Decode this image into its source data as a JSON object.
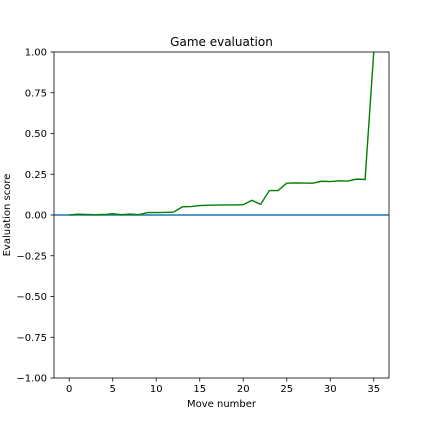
{
  "chart_data": {
    "type": "line",
    "title": "Game evaluation",
    "xlabel": "Move number",
    "ylabel": "Evaluation score",
    "xlim": [
      -1.75,
      36.75
    ],
    "ylim": [
      -1.0,
      1.0
    ],
    "xticks": [
      0,
      5,
      10,
      15,
      20,
      25,
      30,
      35
    ],
    "xtick_labels": [
      "0",
      "5",
      "10",
      "15",
      "20",
      "25",
      "30",
      "35"
    ],
    "yticks": [
      -1.0,
      -0.75,
      -0.5,
      -0.25,
      0.0,
      0.25,
      0.5,
      0.75,
      1.0
    ],
    "ytick_labels": [
      "−1.00",
      "−0.75",
      "−0.50",
      "−0.25",
      "0.00",
      "0.25",
      "0.50",
      "0.75",
      "1.00"
    ],
    "grid": false,
    "series": [
      {
        "color": "#008000",
        "x": [
          0,
          1,
          2,
          3,
          4,
          5,
          6,
          7,
          8,
          9,
          10,
          11,
          12,
          13,
          14,
          15,
          16,
          17,
          18,
          19,
          20,
          21,
          22,
          23,
          24,
          25,
          26,
          27,
          28,
          29,
          30,
          31,
          32,
          33,
          34,
          35
        ],
        "y": [
          0.0,
          0.005,
          0.003,
          0.002,
          0.003,
          0.008,
          0.002,
          0.006,
          0.002,
          0.015,
          0.015,
          0.016,
          0.018,
          0.05,
          0.052,
          0.058,
          0.06,
          0.061,
          0.062,
          0.062,
          0.063,
          0.09,
          0.065,
          0.15,
          0.15,
          0.195,
          0.197,
          0.196,
          0.195,
          0.207,
          0.205,
          0.21,
          0.208,
          0.22,
          0.218,
          1.0
        ]
      },
      {
        "color": "#1f77b4",
        "x": [
          -1.75,
          36.75
        ],
        "y": [
          0.0,
          0.0
        ]
      }
    ]
  }
}
